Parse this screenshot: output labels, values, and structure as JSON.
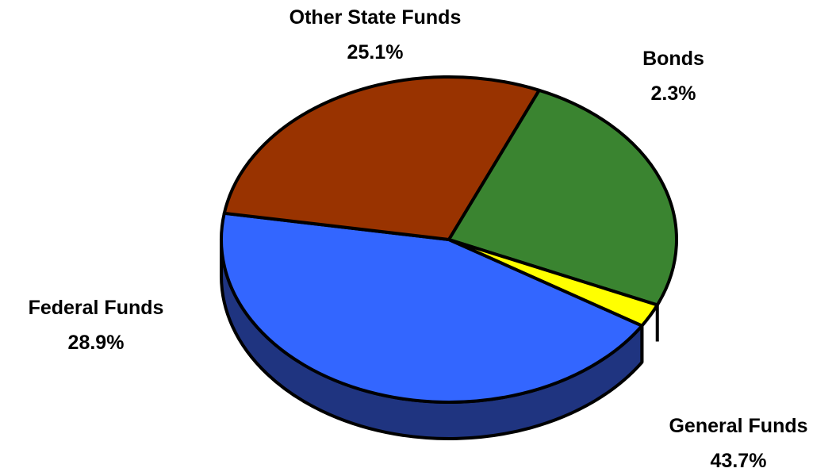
{
  "chart_data": {
    "type": "pie",
    "style": "3d",
    "title": "",
    "slices": [
      {
        "name": "General Funds",
        "value": 43.7,
        "label": "43.7%",
        "color": "#3366FF",
        "side_color": "#1F3480"
      },
      {
        "name": "Federal Funds",
        "value": 28.9,
        "label": "28.9%",
        "color": "#993300",
        "side_color": "#4D1A00"
      },
      {
        "name": "Other State Funds",
        "value": 25.1,
        "label": "25.1%",
        "color": "#3A8430",
        "side_color": "#1D4218"
      },
      {
        "name": "Bonds",
        "value": 2.3,
        "label": "2.3%",
        "color": "#FFFF00",
        "side_color": "#808000"
      }
    ],
    "outline_color": "#000000"
  }
}
